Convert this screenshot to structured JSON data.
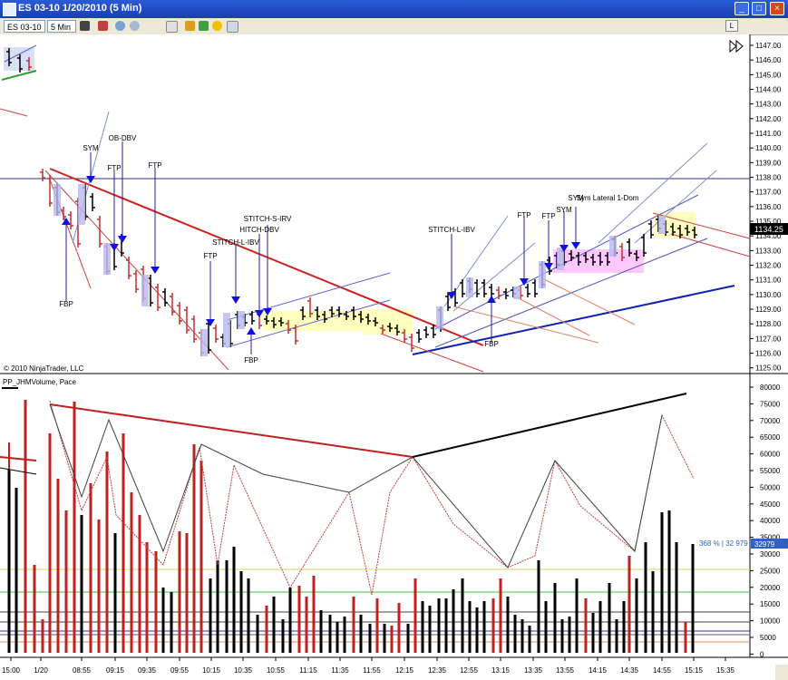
{
  "window": {
    "title": "ES 03-10  1/20/2010 (5 Min)",
    "button_labels": [
      "L"
    ],
    "minimize_icon": "minimize-icon",
    "maximize_icon": "maximize-icon",
    "close_icon": "close-icon"
  },
  "toolbar": {
    "instrument": "ES 03-10",
    "interval": "5 Min",
    "icons": [
      "bar-style-icon",
      "draw-pencil-icon",
      "zoom-in-icon",
      "zoom-out-icon",
      "properties-icon",
      "strategy-icon",
      "indicator-icon",
      "data-box-icon"
    ]
  },
  "price_panel": {
    "copyright": "© 2010 NinjaTrader, LLC",
    "current_price": "1134.25",
    "y_ticks": [
      "1147.00",
      "1146.00",
      "1145.00",
      "1144.00",
      "1143.00",
      "1142.00",
      "1141.00",
      "1140.00",
      "1139.00",
      "1138.00",
      "1137.00",
      "1136.00",
      "1135.00",
      "1134.00",
      "1133.00",
      "1132.00",
      "1131.00",
      "1130.00",
      "1129.00",
      "1128.00",
      "1127.00",
      "1126.00",
      "1125.00"
    ],
    "annotations": [
      {
        "text": "SYM"
      },
      {
        "text": "OB-DBV"
      },
      {
        "text": "FTP"
      },
      {
        "text": "FTP"
      },
      {
        "text": "FBP"
      },
      {
        "text": "FTP"
      },
      {
        "text": "STITCH-L-IBV"
      },
      {
        "text": "HITCH-DBV"
      },
      {
        "text": "STITCH-S-IRV"
      },
      {
        "text": "FBP"
      },
      {
        "text": "STITCH-L-IBV"
      },
      {
        "text": "FTP"
      },
      {
        "text": "FBP"
      },
      {
        "text": "FTP"
      },
      {
        "text": "SYM"
      },
      {
        "text": "SYM"
      },
      {
        "text": "Sym Lateral 1-Dom"
      }
    ]
  },
  "volume_panel": {
    "legend": "PP_JHMVolume, Pace",
    "readout": "368 % | 32 979",
    "readout_badge": "32979",
    "y_ticks": [
      "80000",
      "75000",
      "70000",
      "65000",
      "60000",
      "55000",
      "50000",
      "45000",
      "40000",
      "35000",
      "30000",
      "25000",
      "20000",
      "15000",
      "10000",
      "5000",
      "0"
    ]
  },
  "time_axis": {
    "labels": [
      "15:00",
      "1/20",
      "08:55",
      "09:15",
      "09:35",
      "09:55",
      "10:15",
      "10:35",
      "10:55",
      "11:15",
      "11:35",
      "11:55",
      "12:15",
      "12:35",
      "12:55",
      "13:15",
      "13:35",
      "13:55",
      "14:15",
      "14:35",
      "14:55",
      "15:15",
      "15:35"
    ]
  }
}
